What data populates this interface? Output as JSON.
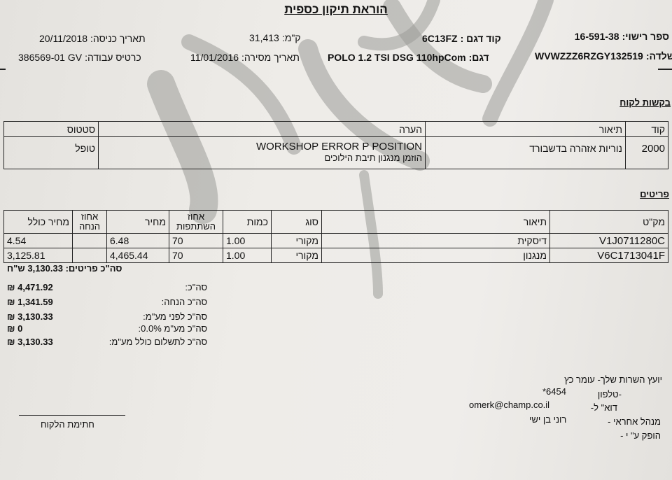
{
  "title": "הוראת תיקון כספית",
  "header": {
    "license": {
      "label": "ספר רישוי:",
      "value": "16-591-38"
    },
    "model_code": {
      "label": "קוד דגם :",
      "value": "6C13FZ"
    },
    "km": {
      "label": "ק\"מ:",
      "value": "31,413"
    },
    "entry_date": {
      "label": "תאריך כניסה:",
      "value": "20/11/2018"
    },
    "chassis": {
      "label": "שלדה:",
      "value": "WVWZZZ6RZGY132519"
    },
    "model": {
      "label": "דגם:",
      "value": "POLO 1.2 TSI DSG 110hpCom"
    },
    "delivery_date": {
      "label": "תאריך מסירה:",
      "value": "11/01/2016"
    },
    "job_card": {
      "label": "כרטיס עבודה:",
      "value": "386569-01 GV"
    }
  },
  "requests": {
    "section_title": "בקשות לקוח",
    "columns": [
      "קוד",
      "תיאור",
      "הערה",
      "סטטוס"
    ],
    "rows": [
      {
        "code": "2000",
        "description": "נוריות אזהרה בדשבורד",
        "note_line1": "WORKSHOP ERROR P POSITION",
        "note_line2": "הוזמן מנגנון תיבת הילוכים",
        "status": "טופל"
      }
    ]
  },
  "parts": {
    "section_title": "פריטים",
    "columns": [
      "מק\"ט",
      "תיאור",
      "סוג",
      "כמות",
      "אחוז השתתפות",
      "מחיר",
      "אחוז הנחה",
      "מחיר כולל"
    ],
    "rows": [
      {
        "sku": "V1J0711280C",
        "description": "דיסקית",
        "type": "מקורי",
        "qty": "1.00",
        "share": "70",
        "price": "6.48",
        "discount": "",
        "total": "4.54"
      },
      {
        "sku": "V6C1713041F",
        "description": "מנגנון",
        "type": "מקורי",
        "qty": "1.00",
        "share": "70",
        "price": "4,465.44",
        "discount": "",
        "total": "3,125.81"
      }
    ],
    "total_line": "סה\"כ פריטים: 3,130.33 ש\"ח"
  },
  "totals": [
    {
      "label": "סה\"כ:",
      "value": "4,471.92 ₪"
    },
    {
      "label": "סה\"כ הנחה:",
      "value": "1,341.59 ₪"
    },
    {
      "label": "סה\"כ לפני מע\"מ:",
      "value": "3,130.33 ₪"
    },
    {
      "label": "סה\"כ מע\"מ 0.0%:",
      "value": "0 ₪"
    },
    {
      "label": "סה\"כ לתשלום כולל מע\"מ:",
      "value": "3,130.33 ₪"
    }
  ],
  "footer": {
    "advisor": "יועץ השרות שלך- עומר כץ",
    "phone_label": "טלפון-",
    "phone": "*6454",
    "email_label": "דוא\" ל-",
    "email": "omerk@champ.co.il",
    "manager_label": "מנהל אחראי -",
    "manager": "רוני בן ישי",
    "issued_label": "הופק ע\" י -",
    "signature_label": "חתימת הלקוח"
  },
  "watermark_color": "#9a9a98"
}
